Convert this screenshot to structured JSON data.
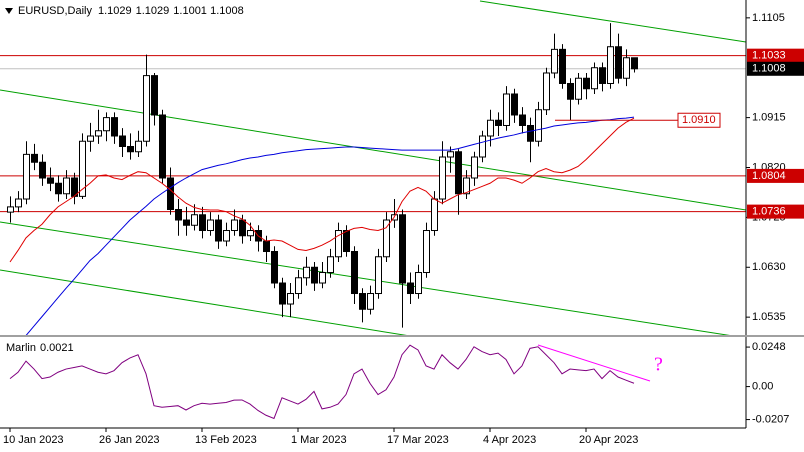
{
  "chart_data": [
    {
      "type": "candlestick",
      "symbol": "EURUSD,Daily",
      "categories": [
        "10 Jan 2023",
        null,
        null,
        null,
        null,
        null,
        null,
        null,
        null,
        null,
        null,
        null,
        "26 Jan 2023",
        null,
        null,
        null,
        null,
        null,
        null,
        null,
        null,
        null,
        null,
        null,
        "13 Feb 2023",
        null,
        null,
        null,
        null,
        null,
        null,
        null,
        null,
        null,
        null,
        null,
        "1 Mar 2023",
        null,
        null,
        null,
        null,
        null,
        null,
        null,
        null,
        null,
        null,
        null,
        "17 Mar 2023",
        null,
        null,
        null,
        null,
        null,
        null,
        null,
        null,
        null,
        null,
        null,
        "4 Apr 2023",
        null,
        null,
        null,
        null,
        null,
        null,
        null,
        null,
        null,
        null,
        null,
        "20 Apr 2023",
        null,
        null,
        null,
        null,
        null,
        null
      ],
      "ohlc": [
        [
          1.0735,
          1.0765,
          1.0715,
          1.0745
        ],
        [
          1.0745,
          1.0775,
          1.0735,
          1.076
        ],
        [
          1.076,
          1.087,
          1.075,
          1.0845
        ],
        [
          1.0845,
          1.0865,
          1.0815,
          1.083
        ],
        [
          1.083,
          1.0845,
          1.0785,
          1.08
        ],
        [
          1.08,
          1.082,
          1.0775,
          1.079
        ],
        [
          1.079,
          1.0805,
          1.0755,
          1.077
        ],
        [
          1.077,
          1.0815,
          1.076,
          1.08
        ],
        [
          1.08,
          1.081,
          1.075,
          1.0765
        ],
        [
          1.0765,
          1.0885,
          1.076,
          1.087
        ],
        [
          1.087,
          1.0905,
          1.085,
          1.088
        ],
        [
          1.088,
          1.093,
          1.0865,
          1.089
        ],
        [
          1.089,
          1.0925,
          1.087,
          1.0915
        ],
        [
          1.0915,
          1.0925,
          1.0865,
          1.088
        ],
        [
          1.088,
          1.0895,
          1.084,
          1.086
        ],
        [
          1.086,
          1.0885,
          1.0835,
          1.085
        ],
        [
          1.085,
          1.089,
          1.084,
          1.087
        ],
        [
          1.087,
          1.1035,
          1.086,
          1.0995
        ],
        [
          1.0995,
          1.1,
          1.09,
          1.092
        ],
        [
          1.092,
          1.093,
          1.079,
          1.08
        ],
        [
          1.08,
          1.082,
          1.073,
          1.074
        ],
        [
          1.074,
          1.076,
          1.069,
          1.072
        ],
        [
          1.072,
          1.0745,
          1.069,
          1.071
        ],
        [
          1.071,
          1.075,
          1.07,
          1.073
        ],
        [
          1.073,
          1.0745,
          1.0685,
          1.07
        ],
        [
          1.07,
          1.0735,
          1.069,
          1.072
        ],
        [
          1.072,
          1.073,
          1.0665,
          1.068
        ],
        [
          1.068,
          1.0715,
          1.067,
          1.07
        ],
        [
          1.07,
          1.074,
          1.069,
          1.072
        ],
        [
          1.072,
          1.073,
          1.0675,
          1.069
        ],
        [
          1.069,
          1.0715,
          1.068,
          1.07
        ],
        [
          1.07,
          1.071,
          1.066,
          1.068
        ],
        [
          1.068,
          1.069,
          1.064,
          1.066
        ],
        [
          1.066,
          1.067,
          1.059,
          1.06
        ],
        [
          1.06,
          1.061,
          1.0535,
          1.056
        ],
        [
          1.056,
          1.06,
          1.0535,
          1.058
        ],
        [
          1.058,
          1.0625,
          1.057,
          1.061
        ],
        [
          1.061,
          1.065,
          1.0595,
          1.063
        ],
        [
          1.063,
          1.064,
          1.0585,
          1.06
        ],
        [
          1.06,
          1.064,
          1.059,
          1.062
        ],
        [
          1.062,
          1.0665,
          1.061,
          1.065
        ],
        [
          1.065,
          1.0715,
          1.064,
          1.07
        ],
        [
          1.07,
          1.071,
          1.065,
          1.066
        ],
        [
          1.066,
          1.067,
          1.056,
          1.058
        ],
        [
          1.058,
          1.059,
          1.0525,
          1.055
        ],
        [
          1.055,
          1.0595,
          1.054,
          1.058
        ],
        [
          1.058,
          1.0665,
          1.057,
          1.065
        ],
        [
          1.065,
          1.0735,
          1.064,
          1.072
        ],
        [
          1.072,
          1.076,
          1.0705,
          1.073
        ],
        [
          1.073,
          1.074,
          1.0515,
          1.06
        ],
        [
          1.06,
          1.062,
          1.056,
          1.058
        ],
        [
          1.058,
          1.0635,
          1.057,
          1.062
        ],
        [
          1.062,
          1.0715,
          1.061,
          1.07
        ],
        [
          1.07,
          1.0775,
          1.069,
          1.076
        ],
        [
          1.076,
          1.087,
          1.075,
          1.084
        ],
        [
          1.084,
          1.086,
          1.081,
          1.085
        ],
        [
          1.085,
          1.0855,
          1.073,
          1.077
        ],
        [
          1.077,
          1.0815,
          1.076,
          1.08
        ],
        [
          1.08,
          1.085,
          1.0785,
          1.084
        ],
        [
          1.084,
          1.089,
          1.083,
          1.088
        ],
        [
          1.088,
          1.093,
          1.086,
          1.091
        ],
        [
          1.091,
          1.0925,
          1.088,
          1.09
        ],
        [
          1.09,
          1.0975,
          1.089,
          1.096
        ],
        [
          1.096,
          1.097,
          1.0905,
          1.092
        ],
        [
          1.092,
          1.0935,
          1.0885,
          1.09
        ],
        [
          1.09,
          1.0915,
          1.083,
          1.087
        ],
        [
          1.087,
          1.0945,
          1.086,
          1.093
        ],
        [
          1.093,
          1.101,
          1.092,
          1.1
        ],
        [
          1.1,
          1.1075,
          1.099,
          1.1045
        ],
        [
          1.1045,
          1.1055,
          1.097,
          1.098
        ],
        [
          1.098,
          1.099,
          1.091,
          1.095
        ],
        [
          1.095,
          1.1,
          1.094,
          1.099
        ],
        [
          1.099,
          1.1,
          1.095,
          1.097
        ],
        [
          1.097,
          1.102,
          1.096,
          1.101
        ],
        [
          1.101,
          1.102,
          1.0965,
          1.098
        ],
        [
          1.098,
          1.1095,
          1.097,
          1.105
        ],
        [
          1.105,
          1.1075,
          1.098,
          1.099
        ],
        [
          1.099,
          1.1045,
          1.0975,
          1.1029
        ],
        [
          1.1029,
          1.1029,
          1.1001,
          1.1008
        ]
      ],
      "series": [
        {
          "color": "#0000dd",
          "values": [
            null,
            null,
            1.05,
            1.0518,
            1.0536,
            1.0554,
            1.0572,
            1.059,
            1.0607,
            1.0625,
            1.0643,
            1.0656,
            1.0672,
            1.0688,
            1.0704,
            1.072,
            1.0733,
            1.0746,
            1.076,
            1.0771,
            1.0781,
            1.0791,
            1.08,
            1.0808,
            1.0816,
            1.082,
            1.0824,
            1.0827,
            1.0831,
            1.0835,
            1.0838,
            1.084,
            1.0843,
            1.0845,
            1.0848,
            1.085,
            1.0852,
            1.0854,
            1.0855,
            1.0856,
            1.0857,
            1.0858,
            1.0859,
            1.0859,
            1.0858,
            1.0857,
            1.0856,
            1.0855,
            1.0854,
            1.0853,
            1.0853,
            1.0853,
            1.0853,
            1.0853,
            1.0853,
            1.0853,
            1.0856,
            1.086,
            1.0864,
            1.0868,
            1.0872,
            1.0876,
            1.0879,
            1.0882,
            1.0886,
            1.0889,
            1.0892,
            1.0895,
            1.0899,
            1.0901,
            1.0903,
            1.0905,
            1.0906,
            1.0908,
            1.091,
            1.0911,
            1.0913,
            1.0914,
            1.0916
          ]
        },
        {
          "color": "#e00000",
          "values": [
            1.064,
            1.0662,
            1.0686,
            1.07,
            1.0712,
            1.073,
            1.0745,
            1.0755,
            1.0765,
            1.0778,
            1.079,
            1.0804,
            1.0806,
            1.08,
            1.0797,
            1.0805,
            1.0812,
            1.081,
            1.08,
            1.079,
            1.0778,
            1.0764,
            1.0752,
            1.0744,
            1.074,
            1.0739,
            1.0739,
            1.0736,
            1.0728,
            1.0722,
            1.071,
            1.069,
            1.068,
            1.0682,
            1.068,
            1.0672,
            1.0664,
            1.0662,
            1.0666,
            1.0672,
            1.068,
            1.069,
            1.0698,
            1.0704,
            1.0706,
            1.0702,
            1.07,
            1.0705,
            1.0725,
            1.0755,
            1.0775,
            1.0782,
            1.0775,
            1.076,
            1.0752,
            1.076,
            1.0768,
            1.0772,
            1.0778,
            1.0784,
            1.079,
            1.08,
            1.08,
            1.0796,
            1.079,
            1.08,
            1.0812,
            1.0818,
            1.0812,
            1.081,
            1.0815,
            1.0822,
            1.0835,
            1.085,
            1.0865,
            1.088,
            1.0895,
            1.0906,
            1.0914
          ]
        }
      ],
      "levels": [
        1.1033,
        1.0804,
        1.0736
      ],
      "level_color": "#cc0000",
      "marker_level": {
        "value": 1.091,
        "label": "1.0910"
      },
      "ylim": [
        1.0501,
        1.1139
      ],
      "yticks": [
        1.0535,
        {
          "value": 1.063,
          "label": "1.0630"
        },
        1.0725,
        {
          "value": 1.082,
          "label": "1.0820"
        },
        1.0915,
        1.1105
      ],
      "grid": false
    },
    {
      "type": "line",
      "title": "Marlin",
      "color": "#800080",
      "values": [
        0.005,
        0.009,
        0.016,
        0.011,
        0.005,
        0.006,
        0.009,
        0.011,
        0.012,
        0.013,
        0.011,
        0.009,
        0.008,
        0.01,
        0.015,
        0.018,
        0.02,
        0.008,
        -0.012,
        -0.013,
        -0.0125,
        -0.012,
        -0.0147,
        -0.012,
        -0.0105,
        -0.011,
        -0.0105,
        -0.01,
        -0.0085,
        -0.0084,
        -0.011,
        -0.015,
        -0.018,
        -0.02,
        -0.007,
        -0.009,
        -0.011,
        -0.008,
        -0.003,
        -0.014,
        -0.013,
        -0.011,
        -0.005,
        0.008,
        0.011,
        0.002,
        -0.005,
        -0.002,
        0.006,
        0.02,
        0.026,
        0.023,
        0.013,
        0.011,
        0.02,
        0.015,
        0.011,
        0.017,
        0.025,
        0.022,
        0.02,
        0.021,
        0.017,
        0.008,
        0.013,
        0.024,
        0.025,
        0.02,
        0.015,
        0.008,
        0.011,
        0.0105,
        0.01,
        0.011,
        0.005,
        0.01,
        0.006,
        0.004,
        0.0021
      ],
      "ylim": [
        -0.026,
        0.0305
      ],
      "yticks": [
        -0.0207,
        {
          "value": 0,
          "label": "0.00"
        },
        0.0248
      ],
      "annotation": "?"
    }
  ]
}
